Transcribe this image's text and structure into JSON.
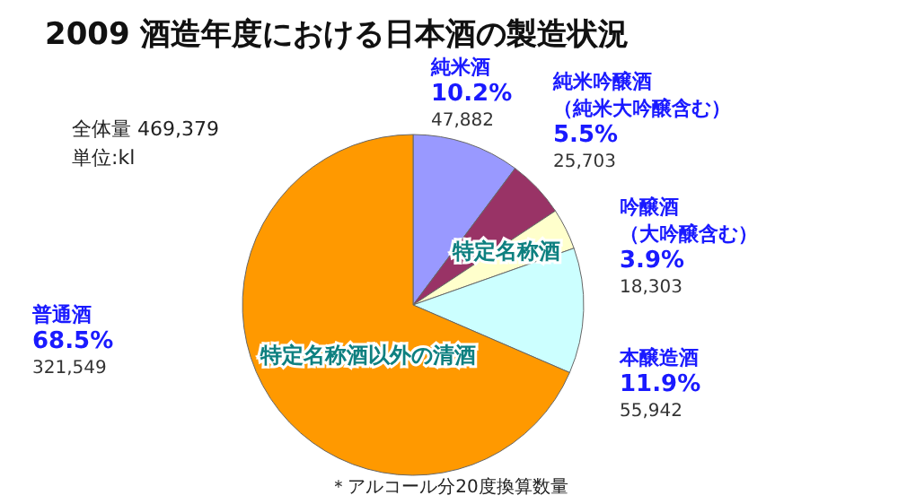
{
  "chart_data": {
    "type": "pie",
    "title": "2009 酒造年度における日本酒の製造状況",
    "categories": [
      "純米酒",
      "純米吟醸酒（純米大吟醸含む）",
      "吟醸酒（大吟醸含む）",
      "本醸造酒",
      "普通酒"
    ],
    "values": [
      10.2,
      5.5,
      3.9,
      11.9,
      68.5
    ],
    "value_labels": [
      "10.2%",
      "5.5%",
      "3.9%",
      "11.9%",
      "68.5%"
    ],
    "colors": [
      "#9999ff",
      "#993366",
      "#ffffcc",
      "#ccffff",
      "#ff9900"
    ],
    "annotations": [
      "全体量 469,379",
      "単位:kl",
      "特定名称酒",
      "特定名称酒以外の清酒",
      "＊アルコール分20度換算数量",
      "47,882",
      "25,703",
      "18,303",
      "55,942",
      "321,549"
    ],
    "legend": false
  }
}
